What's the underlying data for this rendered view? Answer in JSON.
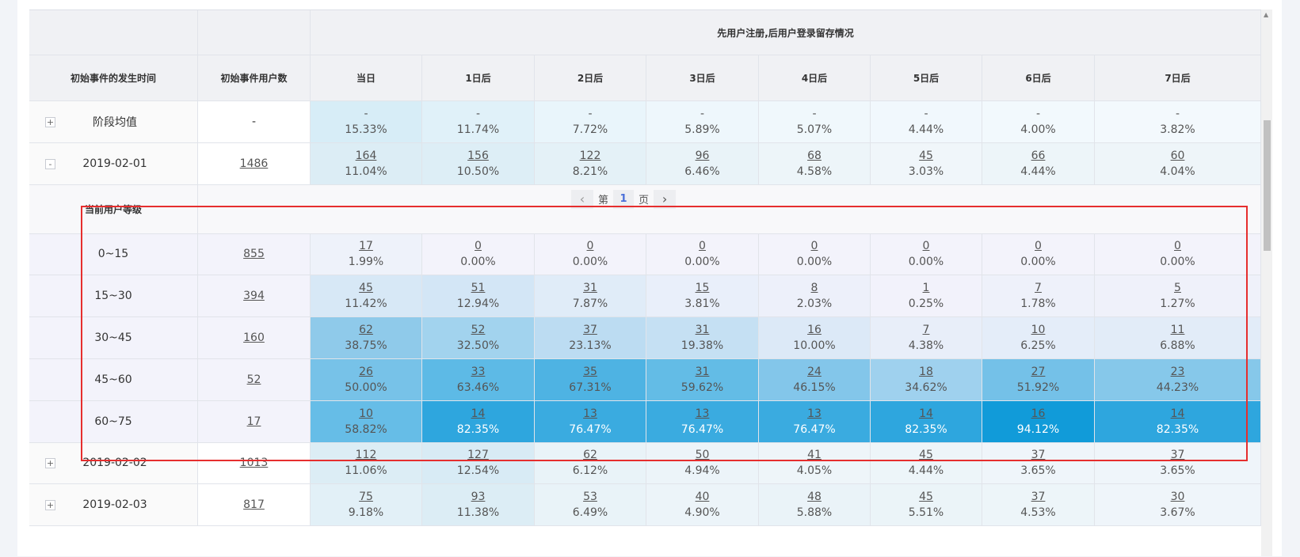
{
  "header": {
    "group_title": "先用户注册,后用户登录留存情况",
    "col_time": "初始事件的发生时间",
    "col_users": "初始事件用户数",
    "days": [
      "当日",
      "1日后",
      "2日后",
      "3日后",
      "4日后",
      "5日后",
      "6日后",
      "7日后"
    ]
  },
  "summary_row": {
    "toggle": "+",
    "label": "阶段均值",
    "users": "-",
    "cells": [
      {
        "n": "-",
        "p": "15.33%",
        "bg": "#d7edf7"
      },
      {
        "n": "-",
        "p": "11.74%",
        "bg": "#e0f1f9"
      },
      {
        "n": "-",
        "p": "7.72%",
        "bg": "#e9f5fb"
      },
      {
        "n": "-",
        "p": "5.89%",
        "bg": "#eef7fc"
      },
      {
        "n": "-",
        "p": "5.07%",
        "bg": "#f0f8fc"
      },
      {
        "n": "-",
        "p": "4.44%",
        "bg": "#f1f8fd"
      },
      {
        "n": "-",
        "p": "4.00%",
        "bg": "#f2f9fd"
      },
      {
        "n": "-",
        "p": "3.82%",
        "bg": "#f3f9fd"
      }
    ]
  },
  "date_row_expanded": {
    "toggle": "-",
    "label": "2019-02-01",
    "users": "1486",
    "cells": [
      {
        "n": "164",
        "p": "11.04%",
        "bg": "#dcedf5"
      },
      {
        "n": "156",
        "p": "10.50%",
        "bg": "#ddeef6"
      },
      {
        "n": "122",
        "p": "8.21%",
        "bg": "#e4f1f7"
      },
      {
        "n": "96",
        "p": "6.46%",
        "bg": "#e9f3f8"
      },
      {
        "n": "68",
        "p": "4.58%",
        "bg": "#edf5f9"
      },
      {
        "n": "45",
        "p": "3.03%",
        "bg": "#f0f6fa"
      },
      {
        "n": "66",
        "p": "4.44%",
        "bg": "#edf5f9"
      },
      {
        "n": "60",
        "p": "4.04%",
        "bg": "#eef5f9"
      }
    ]
  },
  "sub_table": {
    "level_header": "当前用户等级",
    "pager": {
      "prev": "‹",
      "page_prefix": "第",
      "page": "1",
      "page_suffix": "页",
      "next": "›"
    },
    "rows": [
      {
        "label": "0~15",
        "users": "855",
        "cells": [
          {
            "n": "17",
            "p": "1.99%",
            "bg": "#eef2fa"
          },
          {
            "n": "0",
            "p": "0.00%",
            "bg": "#f3f3fb"
          },
          {
            "n": "0",
            "p": "0.00%",
            "bg": "#f3f3fb"
          },
          {
            "n": "0",
            "p": "0.00%",
            "bg": "#f3f3fb"
          },
          {
            "n": "0",
            "p": "0.00%",
            "bg": "#f3f3fb"
          },
          {
            "n": "0",
            "p": "0.00%",
            "bg": "#f3f3fb"
          },
          {
            "n": "0",
            "p": "0.00%",
            "bg": "#f3f3fb"
          },
          {
            "n": "0",
            "p": "0.00%",
            "bg": "#f3f3fb"
          }
        ]
      },
      {
        "label": "15~30",
        "users": "394",
        "cells": [
          {
            "n": "45",
            "p": "11.42%",
            "bg": "#d7e8f6"
          },
          {
            "n": "51",
            "p": "12.94%",
            "bg": "#d3e6f6"
          },
          {
            "n": "31",
            "p": "7.87%",
            "bg": "#e0ecf8"
          },
          {
            "n": "15",
            "p": "3.81%",
            "bg": "#e9effa"
          },
          {
            "n": "8",
            "p": "2.03%",
            "bg": "#edf0fa"
          },
          {
            "n": "1",
            "p": "0.25%",
            "bg": "#f2f2fb"
          },
          {
            "n": "7",
            "p": "1.78%",
            "bg": "#eef1fa"
          },
          {
            "n": "5",
            "p": "1.27%",
            "bg": "#eff1fa"
          }
        ]
      },
      {
        "label": "30~45",
        "users": "160",
        "cells": [
          {
            "n": "62",
            "p": "38.75%",
            "bg": "#8fcaea"
          },
          {
            "n": "52",
            "p": "32.50%",
            "bg": "#a2d3ee"
          },
          {
            "n": "37",
            "p": "23.13%",
            "bg": "#bcdcf2"
          },
          {
            "n": "31",
            "p": "19.38%",
            "bg": "#c5e0f3"
          },
          {
            "n": "16",
            "p": "10.00%",
            "bg": "#dce9f7"
          },
          {
            "n": "7",
            "p": "4.38%",
            "bg": "#e8eef9"
          },
          {
            "n": "10",
            "p": "6.25%",
            "bg": "#e4edf9"
          },
          {
            "n": "11",
            "p": "6.88%",
            "bg": "#e2ecf8"
          }
        ]
      },
      {
        "label": "45~60",
        "users": "52",
        "cells": [
          {
            "n": "26",
            "p": "50.00%",
            "bg": "#77c2e8"
          },
          {
            "n": "33",
            "p": "63.46%",
            "bg": "#5dbae6"
          },
          {
            "n": "35",
            "p": "67.31%",
            "bg": "#4eb3e3"
          },
          {
            "n": "31",
            "p": "59.62%",
            "bg": "#63bce6"
          },
          {
            "n": "24",
            "p": "46.15%",
            "bg": "#83c6ea"
          },
          {
            "n": "18",
            "p": "34.62%",
            "bg": "#9fd1ee"
          },
          {
            "n": "27",
            "p": "51.92%",
            "bg": "#74c1e8"
          },
          {
            "n": "23",
            "p": "44.23%",
            "bg": "#86c8ea"
          }
        ]
      },
      {
        "label": "60~75",
        "users": "17",
        "cells": [
          {
            "n": "10",
            "p": "58.82%",
            "bg": "#66bde7"
          },
          {
            "n": "14",
            "p": "82.35%",
            "bg": "#2ea6de"
          },
          {
            "n": "13",
            "p": "76.47%",
            "bg": "#3aabe0"
          },
          {
            "n": "13",
            "p": "76.47%",
            "bg": "#3aabe0"
          },
          {
            "n": "13",
            "p": "76.47%",
            "bg": "#3aabe0"
          },
          {
            "n": "14",
            "p": "82.35%",
            "bg": "#2ea6de"
          },
          {
            "n": "16",
            "p": "94.12%",
            "bg": "#119bd9"
          },
          {
            "n": "14",
            "p": "82.35%",
            "bg": "#2ea6de"
          }
        ]
      }
    ]
  },
  "collapsed_rows": [
    {
      "toggle": "+",
      "label": "2019-02-02",
      "users": "1013",
      "cells": [
        {
          "n": "112",
          "p": "11.06%",
          "bg": "#dcedf5"
        },
        {
          "n": "127",
          "p": "12.54%",
          "bg": "#d8ebf5"
        },
        {
          "n": "62",
          "p": "6.12%",
          "bg": "#e9f3f8"
        },
        {
          "n": "50",
          "p": "4.94%",
          "bg": "#ecf4f9"
        },
        {
          "n": "41",
          "p": "4.05%",
          "bg": "#eef5f9"
        },
        {
          "n": "45",
          "p": "4.44%",
          "bg": "#edf5f9"
        },
        {
          "n": "37",
          "p": "3.65%",
          "bg": "#eff5fa"
        },
        {
          "n": "37",
          "p": "3.65%",
          "bg": "#eff5fa"
        }
      ]
    },
    {
      "toggle": "+",
      "label": "2019-02-03",
      "users": "817",
      "cells": [
        {
          "n": "75",
          "p": "9.18%",
          "bg": "#e2f0f7"
        },
        {
          "n": "93",
          "p": "11.38%",
          "bg": "#dcedf5"
        },
        {
          "n": "53",
          "p": "6.49%",
          "bg": "#e9f3f8"
        },
        {
          "n": "40",
          "p": "4.90%",
          "bg": "#ecf4f9"
        },
        {
          "n": "48",
          "p": "5.88%",
          "bg": "#eaf3f8"
        },
        {
          "n": "45",
          "p": "5.51%",
          "bg": "#ebf4f8"
        },
        {
          "n": "37",
          "p": "4.53%",
          "bg": "#edf5f9"
        },
        {
          "n": "30",
          "p": "3.67%",
          "bg": "#eff5fa"
        }
      ]
    }
  ],
  "colors": {
    "highlight_border": "#e62e2e",
    "header_bg": "#f0f1f4",
    "pager_active": "#4a6fd9"
  }
}
